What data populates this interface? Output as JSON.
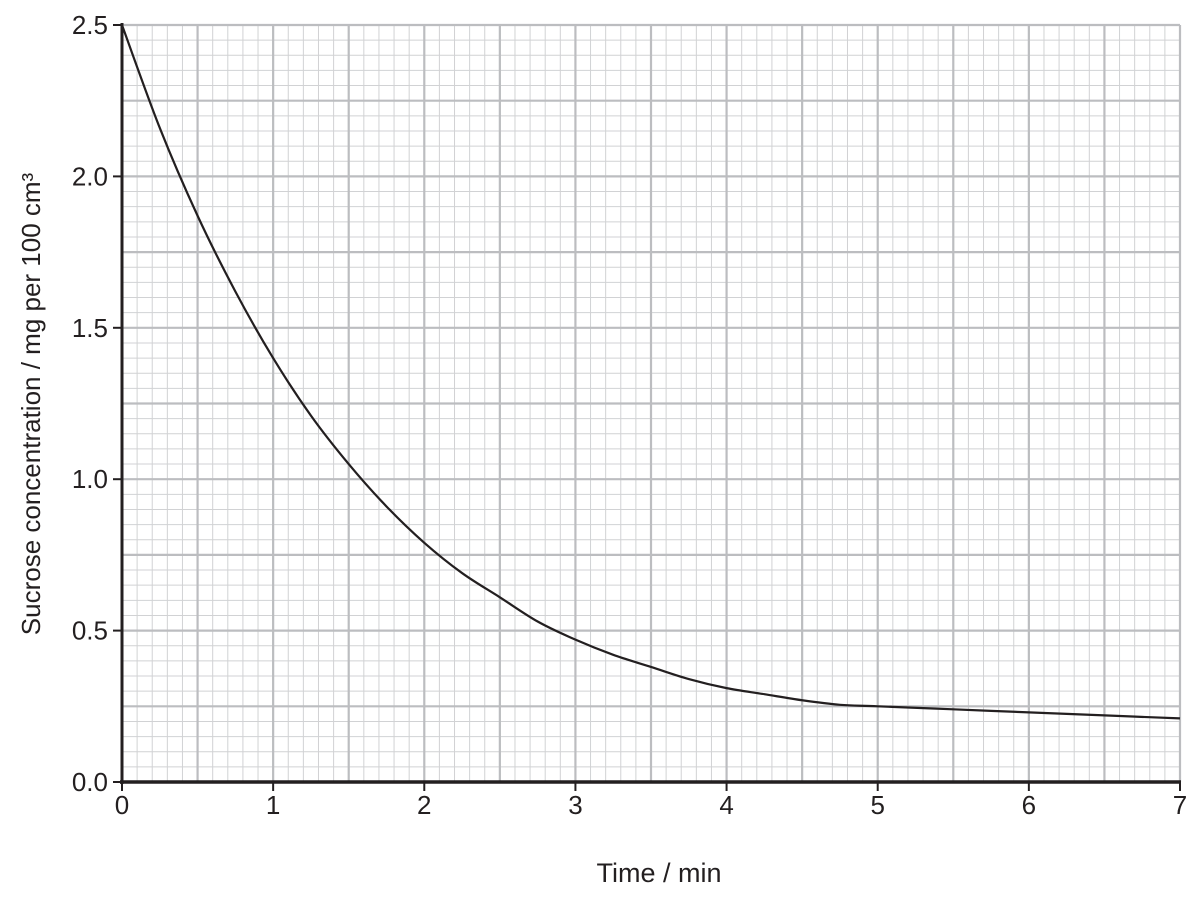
{
  "chart_data": {
    "type": "line",
    "title": "",
    "xlabel": "Time / min",
    "ylabel": "Sucrose concentration / mg per 100 cm³",
    "xlim": [
      0,
      7
    ],
    "ylim": [
      0,
      2.5
    ],
    "x_ticks": [
      "0",
      "1",
      "2",
      "3",
      "4",
      "5",
      "6",
      "7"
    ],
    "y_ticks": [
      "0.0",
      "0.5",
      "1.0",
      "1.5",
      "2.0",
      "2.5"
    ],
    "grid": true,
    "legend": "none",
    "series": [
      {
        "x": [
          0,
          0.25,
          0.5,
          0.75,
          1.0,
          1.25,
          1.5,
          1.75,
          2.0,
          2.25,
          2.5,
          2.75,
          3.0,
          3.25,
          3.5,
          3.75,
          4.0,
          4.25,
          4.5,
          4.75,
          5.0,
          5.5,
          6.0,
          6.5,
          7.0
        ],
        "y": [
          2.5,
          2.16,
          1.87,
          1.62,
          1.4,
          1.21,
          1.05,
          0.91,
          0.79,
          0.69,
          0.61,
          0.53,
          0.47,
          0.42,
          0.38,
          0.34,
          0.31,
          0.29,
          0.27,
          0.255,
          0.25,
          0.24,
          0.23,
          0.22,
          0.21
        ]
      }
    ],
    "colors": {
      "curve": "#231f20",
      "axis": "#231f20",
      "grid_major": "#bcbdc0",
      "grid_minor": "#d1d2d4"
    }
  }
}
